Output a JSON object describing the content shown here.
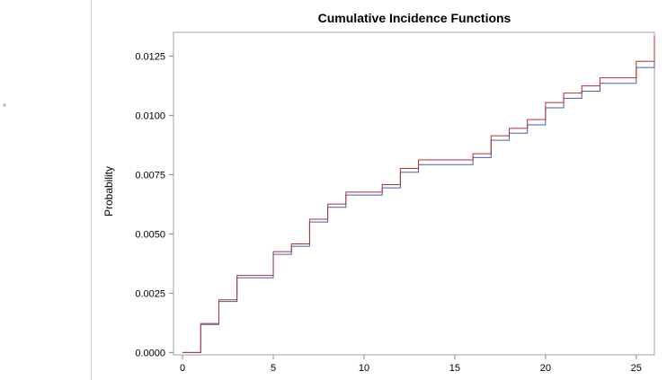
{
  "colors": {
    "series_a": "#4a5bb0",
    "series_b": "#b03030",
    "frame": "#a0a0a0",
    "axis": "#888888"
  },
  "chart_data": {
    "type": "line",
    "step": true,
    "title": "Cumulative Incidence Functions",
    "xlabel": "",
    "ylabel": "Probability",
    "xlim": [
      -0.5,
      26
    ],
    "ylim": [
      -0.0001,
      0.0135
    ],
    "x_ticks": [
      0,
      5,
      10,
      15,
      20,
      25
    ],
    "x_tick_labels": [
      "0",
      "5",
      "10",
      "15",
      "20",
      "25"
    ],
    "y_ticks": [
      0,
      0.0025,
      0.005,
      0.0075,
      0.01,
      0.0125
    ],
    "y_tick_labels": [
      "0.0000",
      "0.0025",
      "0.0050",
      "0.0075",
      "0.0100",
      "0.0125"
    ],
    "grid": false,
    "series": [
      {
        "color": "#4a5bb0",
        "x": [
          0,
          1,
          2,
          3,
          5,
          6,
          7,
          8,
          9,
          11,
          12,
          13,
          16,
          17,
          18,
          19,
          20,
          21,
          22,
          23,
          25,
          26
        ],
        "values": [
          0,
          0.00118,
          0.00215,
          0.00315,
          0.00414,
          0.00448,
          0.0055,
          0.00612,
          0.00664,
          0.00694,
          0.0076,
          0.00792,
          0.00822,
          0.00895,
          0.00925,
          0.0096,
          0.01032,
          0.01072,
          0.01102,
          0.01135,
          0.01202,
          0.0131
        ]
      },
      {
        "color": "#b03030",
        "x": [
          0,
          1,
          2,
          3,
          5,
          6,
          7,
          8,
          9,
          11,
          12,
          13,
          16,
          17,
          18,
          19,
          20,
          21,
          22,
          23,
          25,
          26
        ],
        "values": [
          0,
          0.00122,
          0.00222,
          0.00325,
          0.00425,
          0.00458,
          0.00562,
          0.00626,
          0.00676,
          0.00708,
          0.00776,
          0.00812,
          0.00838,
          0.00914,
          0.00945,
          0.00982,
          0.01054,
          0.01094,
          0.01124,
          0.01158,
          0.01228,
          0.01335
        ]
      }
    ]
  }
}
